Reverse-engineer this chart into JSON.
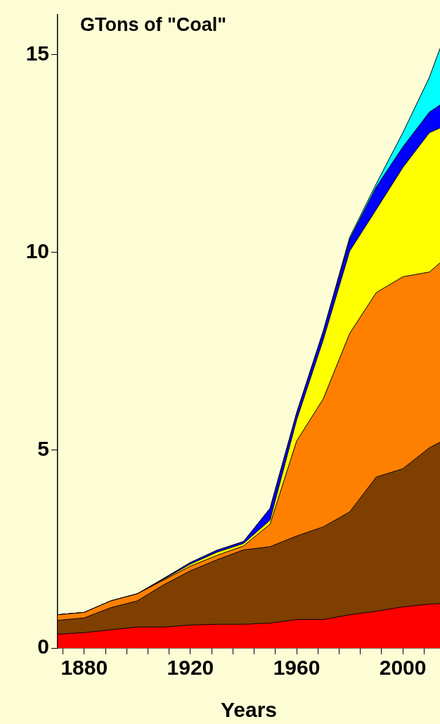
{
  "chart_data": {
    "type": "area",
    "title": "GTons of \"Coal\"",
    "xlabel": "Years",
    "stacked": true,
    "x": [
      1870,
      1880,
      1890,
      1900,
      1910,
      1920,
      1930,
      1940,
      1950,
      1960,
      1970,
      1980,
      1990,
      2000,
      2010,
      2014
    ],
    "series": [
      {
        "color": "#ff0000",
        "values": [
          0.35,
          0.39,
          0.46,
          0.53,
          0.53,
          0.58,
          0.6,
          0.6,
          0.63,
          0.72,
          0.72,
          0.84,
          0.93,
          1.04,
          1.11,
          1.12
        ]
      },
      {
        "color": "#7f3f00",
        "values": [
          0.35,
          0.37,
          0.56,
          0.66,
          1.07,
          1.37,
          1.63,
          1.88,
          1.93,
          2.11,
          2.34,
          2.6,
          3.39,
          3.49,
          3.95,
          4.08
        ]
      },
      {
        "color": "#ff8000",
        "values": [
          0.14,
          0.14,
          0.17,
          0.18,
          0.12,
          0.12,
          0.11,
          0.1,
          0.57,
          2.4,
          3.23,
          4.51,
          4.66,
          4.85,
          4.44,
          4.53
        ]
      },
      {
        "color": "#ffff00",
        "values": [
          0,
          0,
          0,
          0,
          0.02,
          0.05,
          0.08,
          0.06,
          0.1,
          0.53,
          1.49,
          2.08,
          2.1,
          2.76,
          3.52,
          3.41
        ]
      },
      {
        "color": "#0000ff",
        "values": [
          0,
          0,
          0,
          0,
          0.02,
          0.04,
          0.05,
          0.05,
          0.3,
          0.18,
          0.22,
          0.3,
          0.57,
          0.52,
          0.52,
          0.58
        ]
      },
      {
        "color": "#00ffff",
        "values": [
          0,
          0,
          0,
          0,
          0,
          0,
          0,
          0,
          0,
          0,
          0,
          0.05,
          0.08,
          0.36,
          0.88,
          1.43
        ]
      }
    ],
    "xlim": [
      1870,
      2014
    ],
    "ylim": [
      0,
      16
    ],
    "xticks": [
      {
        "value": 1872,
        "label": null
      },
      1880,
      {
        "value": 1888,
        "label": null
      },
      {
        "value": 1896,
        "label": null
      },
      {
        "value": 1904,
        "label": null
      },
      {
        "value": 1912,
        "label": null
      },
      1920,
      {
        "value": 1928,
        "label": null
      },
      {
        "value": 1936,
        "label": null
      },
      {
        "value": 1944,
        "label": null
      },
      {
        "value": 1952,
        "label": null
      },
      1960,
      {
        "value": 1968,
        "label": null
      },
      {
        "value": 1976,
        "label": null
      },
      {
        "value": 1984,
        "label": null
      },
      {
        "value": 1992,
        "label": null
      },
      2000,
      {
        "value": 2008,
        "label": null
      }
    ],
    "yticks": [
      0,
      5,
      10,
      15
    ]
  }
}
